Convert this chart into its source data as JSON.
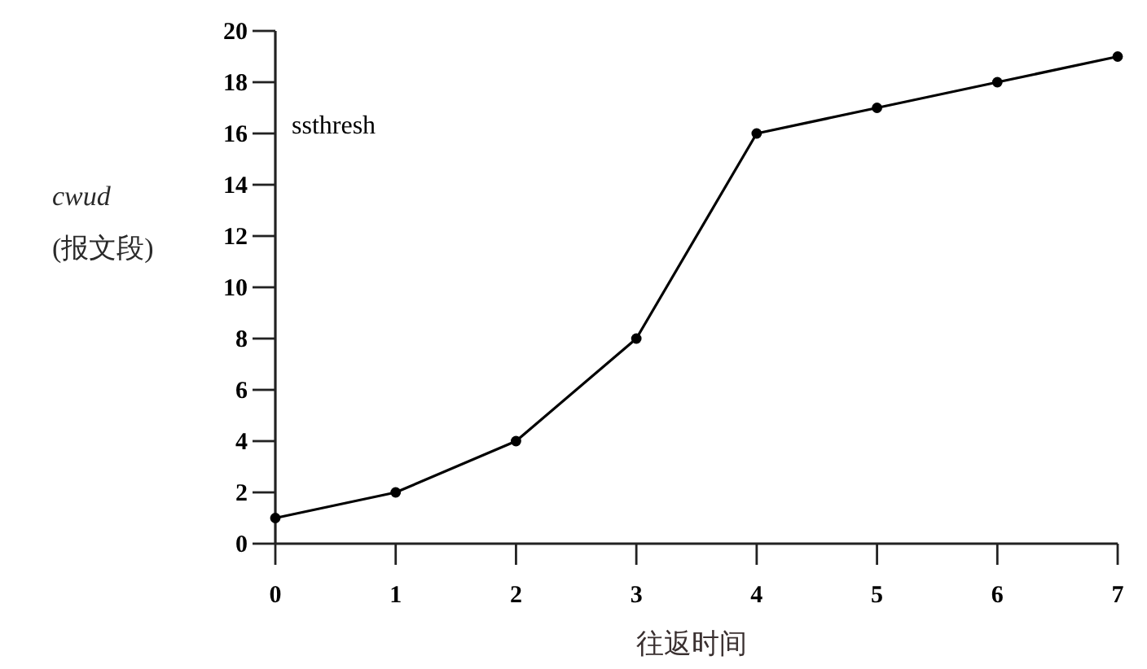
{
  "chart_data": {
    "type": "line",
    "xlabel": "往返时间",
    "ylabel": "*cwud*\n(报文段)",
    "x": [
      0,
      1,
      2,
      3,
      4,
      5,
      6,
      7
    ],
    "values": [
      1,
      2,
      4,
      8,
      16,
      17,
      18,
      19
    ],
    "color": "#000000",
    "marker": "circle",
    "line_style": "solid",
    "xlim": [
      0,
      7
    ],
    "ylim": [
      0,
      20
    ],
    "xticks": [
      0,
      1,
      2,
      3,
      4,
      5,
      6,
      7
    ],
    "yticks": [
      0,
      2,
      4,
      6,
      8,
      10,
      12,
      14,
      16,
      18,
      20
    ],
    "annotations": [
      "ssthresh"
    ]
  }
}
